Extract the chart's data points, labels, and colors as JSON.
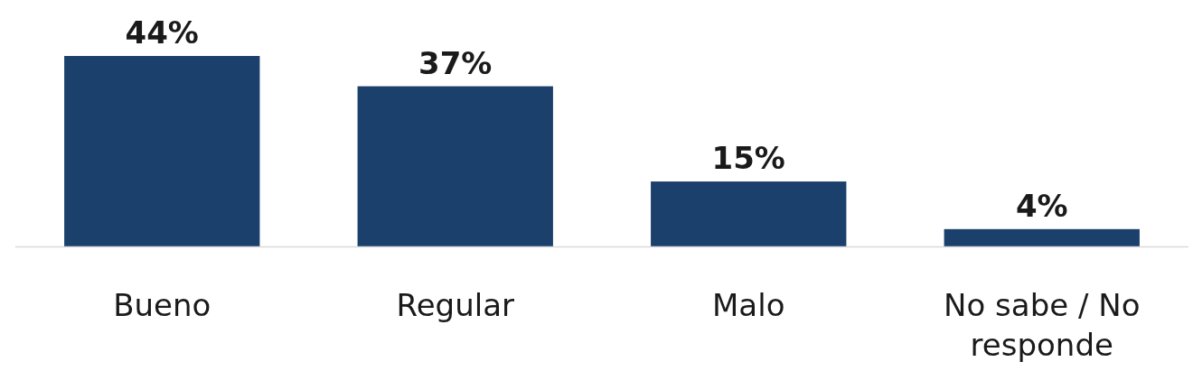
{
  "chart_data": {
    "type": "bar",
    "categories": [
      "Bueno",
      "Regular",
      "Malo",
      "No sabe / No responde"
    ],
    "values": [
      44,
      37,
      15,
      4
    ],
    "value_labels": [
      "44%",
      "37%",
      "15%",
      "4%"
    ],
    "color": "#1b406c"
  }
}
